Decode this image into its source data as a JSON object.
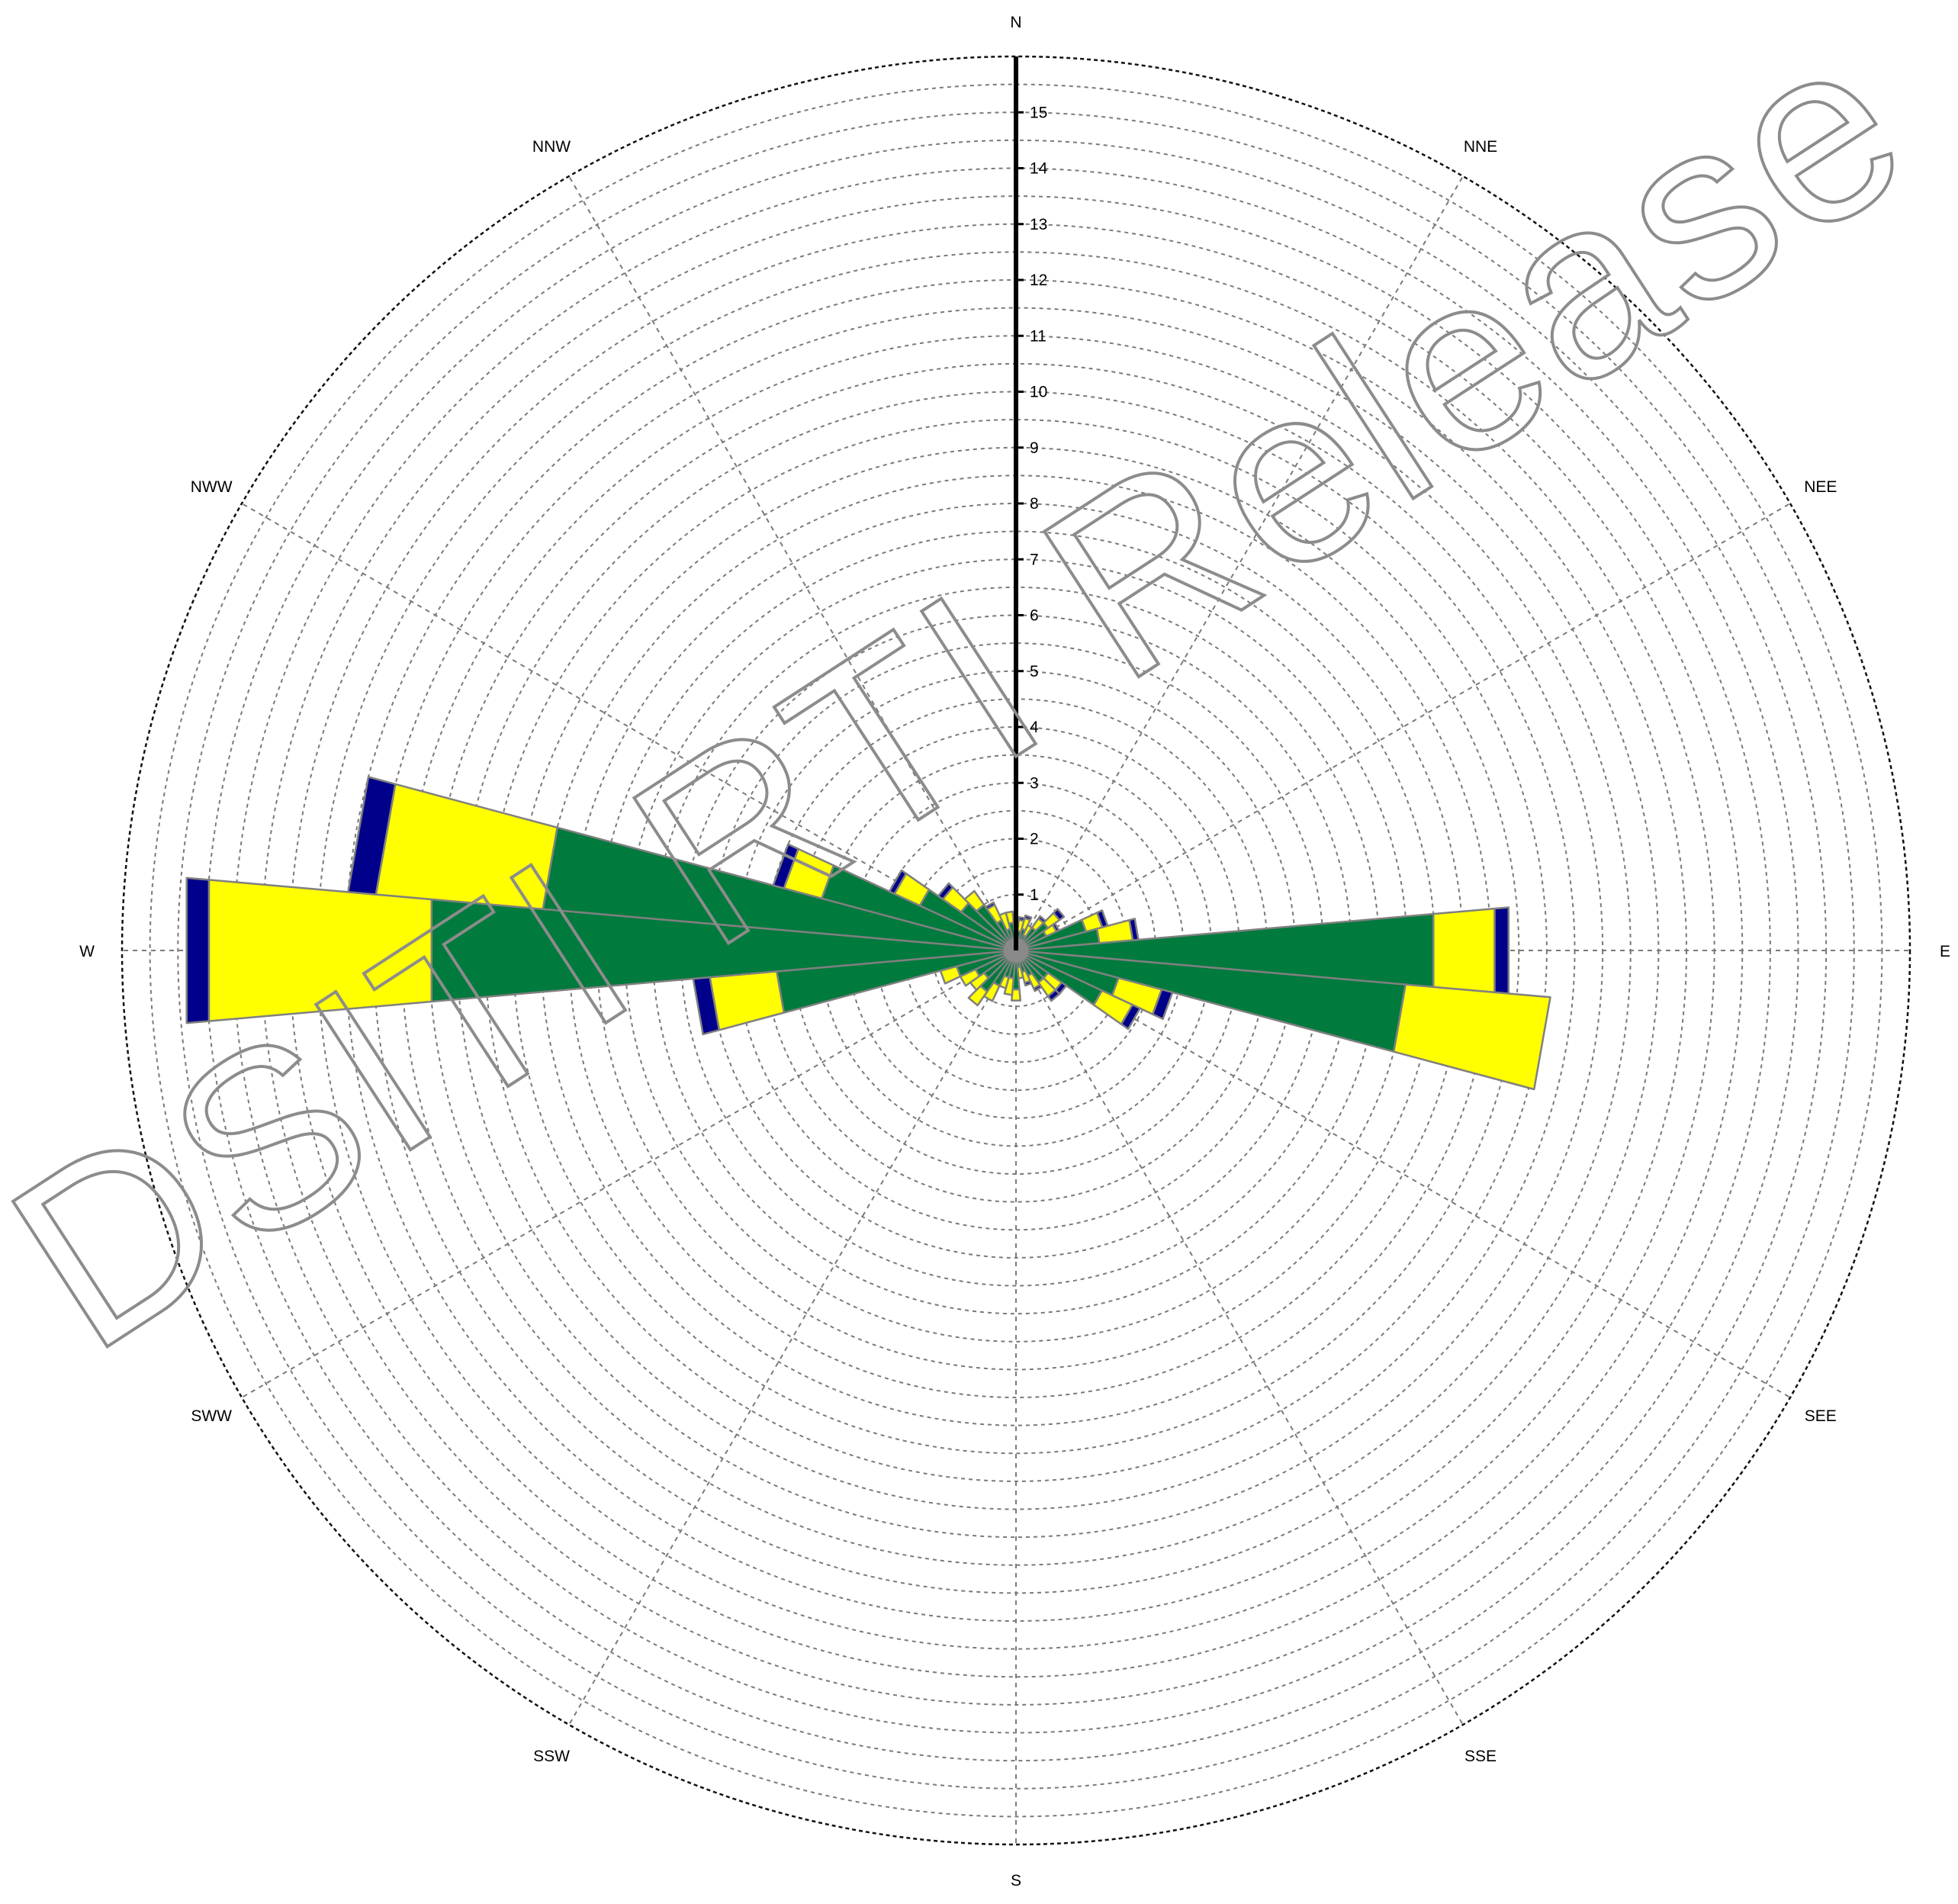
{
  "chart_data": {
    "type": "wind-rose",
    "directions": [
      "N",
      "NNE",
      "NEE",
      "E",
      "SEE",
      "SSE",
      "S",
      "SSW",
      "SWW",
      "W",
      "NWW",
      "NNW"
    ],
    "radial_ticks": [
      "1",
      "2",
      "3",
      "4",
      "5",
      "6",
      "7",
      "8",
      "9",
      "10",
      "11",
      "12",
      "13",
      "14",
      "15"
    ],
    "rlim": [
      0,
      16
    ],
    "grid": true,
    "minor_ring_step": 0.5,
    "bin_count": 36,
    "bin_width_deg": 10,
    "series": [
      {
        "key": "magenta",
        "color": "#e8177f"
      },
      {
        "key": "green",
        "color": "#007a3d"
      },
      {
        "key": "yellow",
        "color": "#ffff00"
      },
      {
        "key": "navy",
        "color": "#00008b"
      }
    ],
    "bins": [
      {
        "dir": 0,
        "values": [
          0,
          0.3,
          0.2,
          0
        ]
      },
      {
        "dir": 10,
        "values": [
          0,
          0.35,
          0.2,
          0.05
        ]
      },
      {
        "dir": 20,
        "values": [
          0,
          0.4,
          0.2,
          0.05
        ]
      },
      {
        "dir": 30,
        "values": [
          0,
          0.3,
          0.2,
          0
        ]
      },
      {
        "dir": 40,
        "values": [
          0,
          0.5,
          0.2,
          0.05
        ]
      },
      {
        "dir": 50,
        "values": [
          0,
          0.7,
          0.25,
          0.1
        ]
      },
      {
        "dir": 60,
        "values": [
          0,
          0.6,
          0.2,
          0.05
        ]
      },
      {
        "dir": 70,
        "values": [
          0,
          1.3,
          0.3,
          0.1
        ]
      },
      {
        "dir": 80,
        "values": [
          0,
          1.5,
          0.6,
          0.1
        ]
      },
      {
        "dir": 90,
        "values": [
          0,
          7.5,
          1.1,
          0.25
        ]
      },
      {
        "dir": 100,
        "values": [
          0,
          7.0,
          2.6,
          0
        ]
      },
      {
        "dir": 110,
        "values": [
          0,
          1.9,
          0.8,
          0.2
        ]
      },
      {
        "dir": 120,
        "values": [
          0,
          1.7,
          0.6,
          0.15
        ]
      },
      {
        "dir": 130,
        "values": [
          0,
          0.7,
          0.3,
          0.1
        ]
      },
      {
        "dir": 140,
        "values": [
          0,
          0.7,
          0.3,
          0.1
        ]
      },
      {
        "dir": 150,
        "values": [
          0,
          0.5,
          0.25,
          0.05
        ]
      },
      {
        "dir": 160,
        "values": [
          0,
          0.4,
          0.2,
          0.05
        ]
      },
      {
        "dir": 170,
        "values": [
          0,
          0.3,
          0.2,
          0
        ]
      },
      {
        "dir": 180,
        "values": [
          0.2,
          0.5,
          0.2,
          0
        ]
      },
      {
        "dir": 190,
        "values": [
          0,
          0.5,
          0.3,
          0
        ]
      },
      {
        "dir": 200,
        "values": [
          0,
          0.5,
          0.2,
          0
        ]
      },
      {
        "dir": 210,
        "values": [
          0,
          0.7,
          0.3,
          0
        ]
      },
      {
        "dir": 220,
        "values": [
          0,
          0.9,
          0.3,
          0
        ]
      },
      {
        "dir": 230,
        "values": [
          0,
          0.7,
          0.3,
          0
        ]
      },
      {
        "dir": 240,
        "values": [
          0,
          0.8,
          0.3,
          0
        ]
      },
      {
        "dir": 250,
        "values": [
          0,
          1.1,
          0.3,
          0
        ]
      },
      {
        "dir": 260,
        "values": [
          0,
          4.3,
          1.2,
          0.3
        ]
      },
      {
        "dir": 270,
        "values": [
          0,
          10.5,
          4.0,
          0.4
        ]
      },
      {
        "dir": 280,
        "values": [
          0,
          8.5,
          3.0,
          0.5
        ]
      },
      {
        "dir": 290,
        "values": [
          0,
          3.6,
          0.7,
          0.2
        ]
      },
      {
        "dir": 300,
        "values": [
          0,
          1.9,
          0.5,
          0.1
        ]
      },
      {
        "dir": 310,
        "values": [
          0,
          1.2,
          0.4,
          0.1
        ]
      },
      {
        "dir": 320,
        "values": [
          0,
          1.0,
          0.3,
          0
        ]
      },
      {
        "dir": 330,
        "values": [
          0,
          0.6,
          0.3,
          0.05
        ]
      },
      {
        "dir": 340,
        "values": [
          0,
          0.4,
          0.3,
          0
        ]
      },
      {
        "dir": 350,
        "values": [
          0,
          0.5,
          0.2,
          0
        ]
      }
    ]
  },
  "watermark": {
    "text": "DSITI RTI Release"
  }
}
